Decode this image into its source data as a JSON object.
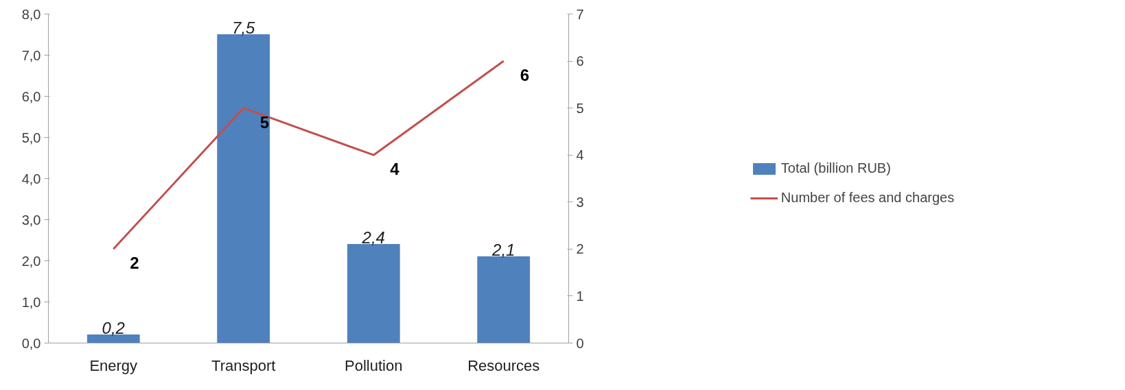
{
  "chart_data": {
    "type": "bar",
    "categories": [
      "Energy",
      "Transport",
      "Pollution",
      "Resources"
    ],
    "series": [
      {
        "name": "Total (billion RUB)",
        "type": "bar",
        "color": "#4f81bd",
        "values": [
          0.2,
          7.5,
          2.4,
          2.1
        ],
        "value_labels": [
          "0,2",
          "7,5",
          "2,4",
          "2,1"
        ]
      },
      {
        "name": "Number of fees and charges",
        "type": "line",
        "axis": "y2",
        "color": "#c0504d",
        "values": [
          2,
          5,
          4,
          6
        ],
        "data_labels": true
      }
    ],
    "ylim": [
      0,
      8
    ],
    "yticks": [
      {
        "value": 0,
        "label": "0,0"
      },
      {
        "value": 1,
        "label": "1,0"
      },
      {
        "value": 2,
        "label": "2,0"
      },
      {
        "value": 3,
        "label": "3,0"
      },
      {
        "value": 4,
        "label": "4,0"
      },
      {
        "value": 5,
        "label": "5,0"
      },
      {
        "value": 6,
        "label": "6,0"
      },
      {
        "value": 7,
        "label": "7,0"
      },
      {
        "value": 8,
        "label": "8,0"
      }
    ],
    "y2lim": [
      0,
      7
    ],
    "y2ticks": [
      0,
      1,
      2,
      3,
      4,
      5,
      6,
      7
    ],
    "grid": false,
    "legend": "right",
    "marker": "none"
  }
}
